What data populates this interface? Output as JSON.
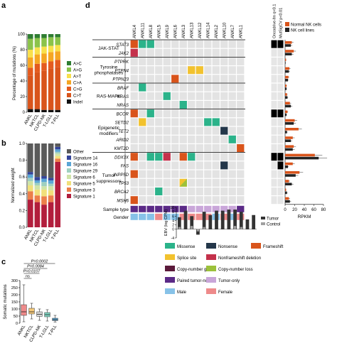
{
  "panel_labels": {
    "a": "a",
    "b": "b",
    "c": "c",
    "d": "d"
  },
  "colors": {
    "mut": {
      "A>C": "#2e7d32",
      "A>G": "#8bc34a",
      "A>T": "#f9e04b",
      "C>A": "#f5a623",
      "C>G": "#e45a1e",
      "C>T": "#d9541b",
      "Indel": "#111111"
    },
    "sig": {
      "Other": "#5a5a5a",
      "Signature 14": "#34449a",
      "Signature 16": "#5aa6d6",
      "Signature 29": "#9fd0c0",
      "Signature 6": "#cfe4a8",
      "Signature 5": "#f1e07a",
      "Signature 3": "#ec7f4a",
      "Signature 1": "#b21d3c"
    },
    "alt": {
      "Missense": "#2bb38a",
      "Nonsense": "#24374a",
      "Frameshift": "#d9541b",
      "Splice site": "#f2c22e",
      "Nonframeshift deletion": "#c4314b",
      "Copy-number gain": "#5b1a3a",
      "Copy-number loss": "#9cc13b",
      "Paired tumor-normal": "#5b2a87",
      "Tumor-only": "#c9a6d9",
      "Male": "#87c2e8",
      "Female": "#ee8a8a"
    },
    "grid_bg": "#e3e3e3",
    "normal_nk": "#d9541b",
    "nk_lines": "#222222",
    "ebv_tumor": "#333333",
    "ebv_control": "#a0a0a0"
  },
  "chart_data": [
    {
      "panel": "a",
      "type": "bar",
      "stacked": true,
      "categories": [
        "ANKL",
        "NKTCL",
        "CLPD-NK",
        "T-LGLL",
        "T-PLL"
      ],
      "ylabel": "Percentage of mutations (%)",
      "ylim": [
        0,
        100
      ],
      "yticks": [
        0,
        20,
        40,
        60,
        80,
        100
      ],
      "series": [
        {
          "name": "Indel",
          "values": [
            4,
            4,
            3,
            3,
            3
          ]
        },
        {
          "name": "C>T",
          "values": [
            43,
            47,
            50,
            53,
            55
          ]
        },
        {
          "name": "C>G",
          "values": [
            10,
            11,
            10,
            9,
            9
          ]
        },
        {
          "name": "C>A",
          "values": [
            13,
            12,
            12,
            12,
            11
          ]
        },
        {
          "name": "A>T",
          "values": [
            10,
            9,
            9,
            8,
            8
          ]
        },
        {
          "name": "A>G",
          "values": [
            14,
            12,
            11,
            11,
            10
          ]
        },
        {
          "name": "A>C",
          "values": [
            6,
            5,
            5,
            4,
            4
          ]
        }
      ],
      "legend": [
        "A>C",
        "A>G",
        "A>T",
        "C>A",
        "C>G",
        "C>T",
        "Indel"
      ]
    },
    {
      "panel": "b",
      "type": "bar",
      "stacked": true,
      "categories": [
        "ANKL",
        "NKTCL",
        "CLPD-NK",
        "T-LGLL",
        "T-PLL"
      ],
      "ylabel": "Normalized weight",
      "ylim": [
        0,
        1
      ],
      "yticks": [
        "0.0",
        "0.2",
        "0.4",
        "0.6",
        "0.8",
        "1.0"
      ],
      "series": [
        {
          "name": "Signature 1",
          "values": [
            0.33,
            0.3,
            0.27,
            0.3,
            0.78
          ]
        },
        {
          "name": "Signature 3",
          "values": [
            0.1,
            0.08,
            0.1,
            0.08,
            0.04
          ]
        },
        {
          "name": "Signature 5",
          "values": [
            0.07,
            0.07,
            0.08,
            0.06,
            0.03
          ]
        },
        {
          "name": "Signature 6",
          "values": [
            0.05,
            0.05,
            0.04,
            0.05,
            0.03
          ]
        },
        {
          "name": "Signature 29",
          "values": [
            0.04,
            0.03,
            0.05,
            0.03,
            0.02
          ]
        },
        {
          "name": "Signature 16",
          "values": [
            0.04,
            0.03,
            0.04,
            0.04,
            0.03
          ]
        },
        {
          "name": "Signature 14",
          "values": [
            0.03,
            0.04,
            0.03,
            0.03,
            0.03
          ]
        },
        {
          "name": "Other",
          "values": [
            0.34,
            0.4,
            0.39,
            0.41,
            0.04
          ]
        }
      ],
      "legend": [
        "Other",
        "Signature 14",
        "Signature 16",
        "Signature 29",
        "Signature 6",
        "Signature 5",
        "Signature 3",
        "Signature 1"
      ]
    },
    {
      "panel": "c",
      "type": "box",
      "categories": [
        "ANKL",
        "NKTCL",
        "CLPD-NK",
        "T-LGLL",
        "T-PLL"
      ],
      "ylabel": "Somatic mutations",
      "ylim": [
        0,
        300
      ],
      "yticks": [
        0,
        50,
        100,
        150,
        200,
        250,
        300
      ],
      "boxes": [
        {
          "min": 10,
          "q1": 55,
          "median": 80,
          "q3": 130,
          "max": 270,
          "color": "#ee8a8a"
        },
        {
          "min": 30,
          "q1": 65,
          "median": 80,
          "q3": 105,
          "max": 140,
          "color": "#f5c97a"
        },
        {
          "min": 20,
          "q1": 48,
          "median": 62,
          "q3": 80,
          "max": 100,
          "color": "#d8d8d8"
        },
        {
          "min": 15,
          "q1": 45,
          "median": 60,
          "q3": 75,
          "max": 95,
          "color": "#7fd4c2"
        },
        {
          "min": 8,
          "q1": 18,
          "median": 25,
          "q3": 35,
          "max": 55,
          "color": "#5aa6d6"
        }
      ],
      "pvalues": [
        "P=0.0002",
        "P=0.0084",
        "P=0.0107",
        "ns"
      ]
    },
    {
      "panel": "d",
      "type": "heatmap",
      "samples": [
        "ANKL4",
        "ANKL11",
        "ANKL8",
        "ANKL5",
        "ANKL9",
        "ANKL6",
        "ANKL3",
        "ANKL13",
        "ANKL12",
        "ANKL14",
        "ANKL2",
        "ANKL10",
        "ANKL7",
        "ANKL1"
      ],
      "groups": [
        {
          "label": "JAK-STAT",
          "genes": [
            "STAT3",
            "JAK2"
          ]
        },
        {
          "label": "Tyrosine phosphatases",
          "genes": [
            "PTPRK",
            "PTPN4",
            "PTPN23"
          ]
        },
        {
          "label": "RAS-MAPK",
          "genes": [
            "BRAF",
            "KRAS",
            "NRAS"
          ]
        },
        {
          "label": "Epigenetic modifiers",
          "genes": [
            "BCOR",
            "SETD2",
            "TET2",
            "ARID2",
            "KMT2D"
          ]
        },
        {
          "label": "Tumor suppressors",
          "genes": [
            "DDX3X",
            "FAS",
            "INPP5D",
            "TP53",
            "BRCA2",
            "MSH6"
          ]
        }
      ],
      "cells": [
        {
          "gene": "STAT3",
          "sample": 0,
          "type": "Frameshift"
        },
        {
          "gene": "STAT3",
          "sample": 1,
          "type": "Missense"
        },
        {
          "gene": "STAT3",
          "sample": 2,
          "type": "Missense"
        },
        {
          "gene": "JAK2",
          "sample": 0,
          "type": "Nonframeshift deletion"
        },
        {
          "gene": "PTPN4",
          "sample": 7,
          "type": "Splice site"
        },
        {
          "gene": "PTPN4",
          "sample": 8,
          "type": "Splice site"
        },
        {
          "gene": "PTPN23",
          "sample": 5,
          "type": "Frameshift"
        },
        {
          "gene": "BRAF",
          "sample": 1,
          "type": "Missense"
        },
        {
          "gene": "KRAS",
          "sample": 4,
          "type": "Missense"
        },
        {
          "gene": "NRAS",
          "sample": 6,
          "type": "Missense"
        },
        {
          "gene": "BCOR",
          "sample": 0,
          "type": "Frameshift"
        },
        {
          "gene": "BCOR",
          "sample": 2,
          "type": "Missense"
        },
        {
          "gene": "SETD2",
          "sample": 1,
          "type": "Splice site"
        },
        {
          "gene": "SETD2",
          "sample": 9,
          "type": "Missense"
        },
        {
          "gene": "SETD2",
          "sample": 10,
          "type": "Missense"
        },
        {
          "gene": "TET2",
          "sample": 11,
          "type": "Nonsense"
        },
        {
          "gene": "ARID2",
          "sample": 12,
          "type": "Missense"
        },
        {
          "gene": "KMT2D",
          "sample": 13,
          "type": "Frameshift"
        },
        {
          "gene": "DDX3X",
          "sample": 0,
          "type": "Frameshift"
        },
        {
          "gene": "DDX3X",
          "sample": 2,
          "type": "Missense"
        },
        {
          "gene": "DDX3X",
          "sample": 3,
          "type": "Missense"
        },
        {
          "gene": "DDX3X",
          "sample": 4,
          "type": "Nonframeshift deletion"
        },
        {
          "gene": "DDX3X",
          "sample": 6,
          "type": "Frameshift"
        },
        {
          "gene": "DDX3X",
          "sample": 7,
          "type": "Missense"
        },
        {
          "gene": "FAS",
          "sample": 11,
          "type": "Nonsense"
        },
        {
          "gene": "INPP5D",
          "sample": 0,
          "type": "Frameshift"
        },
        {
          "gene": "TP53",
          "sample": 6,
          "type": "Copy-number loss"
        },
        {
          "gene": "BRCA2",
          "sample": 3,
          "type": "Missense"
        },
        {
          "gene": "MSH6",
          "sample": 0,
          "type": "Frameshift"
        }
      ],
      "sample_type": [
        "Paired tumor-normal",
        "Paired tumor-normal",
        "Paired tumor-normal",
        "Paired tumor-normal",
        "Paired tumor-normal",
        "Paired tumor-normal",
        "Paired tumor-normal",
        "Tumor-only",
        "Tumor-only",
        "Tumor-only",
        "Tumor-only",
        "Tumor-only",
        "Tumor-only",
        "Paired tumor-normal"
      ],
      "gender": [
        "Male",
        "Male",
        "Male",
        "Female",
        "Male",
        "Male",
        "Female",
        "Female",
        "Female",
        "Female",
        "Male",
        "Female",
        "Male",
        "Female"
      ],
      "row_labels": [
        "Sample type",
        "Gender"
      ]
    },
    {
      "panel": "d-expression",
      "type": "bar",
      "orientation": "horizontal",
      "xlabel": "RPKM",
      "xlim": [
        0,
        80
      ],
      "xticks": [
        0,
        20,
        40,
        60,
        80
      ],
      "col_headers": [
        "Oncodrive-fm q<0.1",
        "MutSigCV p<0.01"
      ],
      "oncodrive_mutsig": {
        "STAT3": [
          1,
          1
        ],
        "BCOR": [
          1,
          1
        ],
        "DDX3X": [
          1,
          1
        ],
        "FAS": [
          0,
          1
        ]
      },
      "legend": [
        "Normal NK cells",
        "NK cell lines"
      ],
      "genes": [
        "STAT3",
        "JAK2",
        "PTPRK",
        "PTPN4",
        "PTPN23",
        "BRAF",
        "KRAS",
        "NRAS",
        "BCOR",
        "SETD2",
        "TET2",
        "ARID2",
        "KMT2D",
        "DDX3X",
        "FAS",
        "INPP5D",
        "TP53",
        "BRCA2",
        "MSH6"
      ],
      "normal_nk": [
        14,
        18,
        2,
        9,
        7,
        3,
        4,
        10,
        5,
        20,
        28,
        16,
        18,
        62,
        16,
        30,
        8,
        2,
        8
      ],
      "nk_lines": [
        12,
        14,
        1,
        8,
        6,
        3,
        5,
        12,
        3,
        18,
        4,
        12,
        16,
        70,
        6,
        22,
        14,
        4,
        10
      ]
    },
    {
      "panel": "d-ebv",
      "type": "bar",
      "ylabel": "EBV (log CPM)",
      "ylim": [
        -4,
        10
      ],
      "yticks": [
        -4,
        0,
        2,
        4,
        6,
        8,
        10
      ],
      "legend": [
        "Tumor",
        "Control"
      ],
      "tumor": [
        5.5,
        8.5,
        6.0,
        -2.5,
        8.0,
        6.5,
        8.5,
        8.5,
        9.0,
        9.0,
        8.0,
        4.5,
        6.5
      ],
      "control": [
        1.0,
        null,
        1.5,
        -1.0,
        1.0,
        null,
        null,
        null,
        null,
        1.5,
        1.0,
        null,
        null
      ]
    }
  ]
}
